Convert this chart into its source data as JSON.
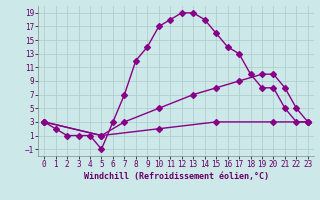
{
  "xlabel": "Windchill (Refroidissement éolien,°C)",
  "background_color": "#cce8e8",
  "grid_color": "#aacccc",
  "line_color": "#880088",
  "xlim": [
    -0.5,
    23.5
  ],
  "ylim": [
    -2,
    20
  ],
  "xticks": [
    0,
    1,
    2,
    3,
    4,
    5,
    6,
    7,
    8,
    9,
    10,
    11,
    12,
    13,
    14,
    15,
    16,
    17,
    18,
    19,
    20,
    21,
    22,
    23
  ],
  "yticks": [
    -1,
    1,
    3,
    5,
    7,
    9,
    11,
    13,
    15,
    17,
    19
  ],
  "line1_x": [
    0,
    1,
    2,
    3,
    4,
    5,
    6,
    7,
    8,
    9,
    10,
    11,
    12,
    13,
    14,
    15,
    16,
    17,
    18,
    19,
    20,
    21,
    22,
    23
  ],
  "line1_y": [
    3,
    2,
    1,
    1,
    1,
    -1,
    3,
    7,
    12,
    14,
    17,
    18,
    19,
    19,
    18,
    16,
    14,
    13,
    10,
    8,
    8,
    5,
    3,
    3
  ],
  "line2_x": [
    0,
    5,
    7,
    10,
    13,
    15,
    17,
    19,
    20,
    21,
    22,
    23
  ],
  "line2_y": [
    3,
    1,
    3,
    5,
    7,
    8,
    9,
    10,
    10,
    8,
    5,
    3
  ],
  "line3_x": [
    0,
    5,
    10,
    15,
    20,
    23
  ],
  "line3_y": [
    3,
    1,
    2,
    3,
    3,
    3
  ],
  "marker": "D",
  "markersize": 3,
  "linewidth": 1.0,
  "tick_fontsize": 5.5,
  "label_fontsize": 6.0
}
